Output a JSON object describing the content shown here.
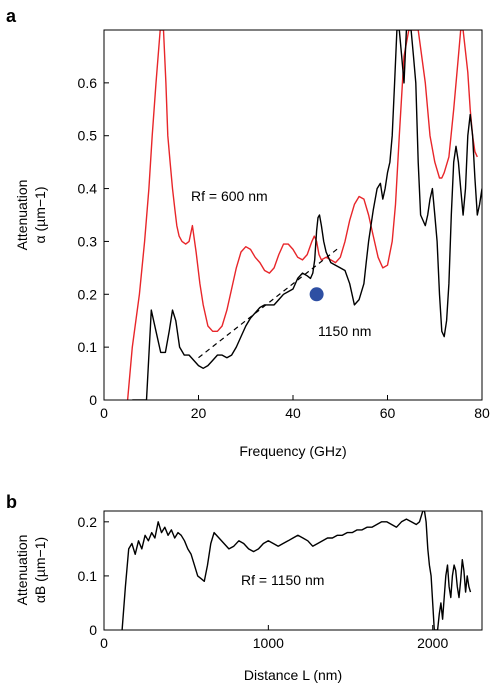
{
  "panels": {
    "a": {
      "letter": "a"
    },
    "b": {
      "letter": "b"
    }
  },
  "chart_data": [
    {
      "panel": "a",
      "type": "line",
      "xlabel": "Frequency (GHz)",
      "ylabel_line1": "Attenuation",
      "ylabel_line2": "α (µm−1)",
      "xlim": [
        0,
        80
      ],
      "ylim": [
        0,
        0.7
      ],
      "xticks": [
        0,
        20,
        40,
        60,
        80
      ],
      "yticks": [
        0,
        0.1,
        0.2,
        0.3,
        0.4,
        0.5,
        0.6
      ],
      "xtick_labels": [
        "0",
        "20",
        "40",
        "60",
        "80"
      ],
      "ytick_labels": [
        "0",
        "0.1",
        "0.2",
        "0.3",
        "0.4",
        "0.5",
        "0.6"
      ],
      "annotations": {
        "red_label": "Rf = 600 nm",
        "black_label": "1150 nm"
      },
      "colors": {
        "red": "#e8262a",
        "black": "#000000",
        "dot": "#2e4fa3"
      },
      "series": [
        {
          "color": "red",
          "x": [
            5.0,
            6.0,
            7.5,
            8.6,
            9.5,
            10.2,
            11.0,
            11.9,
            12.6,
            13.1,
            13.5,
            14.0,
            14.5,
            15.0,
            15.4,
            15.9,
            16.5,
            17.3,
            18.0,
            18.7,
            19.5,
            20.3,
            21.0,
            22.0,
            23.0,
            24.0,
            25.0,
            26.0,
            27.0,
            28.0,
            29.0,
            30.0,
            31.0,
            32.0,
            33.0,
            34.0,
            35.0,
            36.0,
            37.0,
            38.0,
            39.0,
            40.0,
            41.0,
            42.0,
            43.0,
            44.0,
            44.5,
            45.0,
            45.5,
            46.0,
            47.0,
            48.0,
            49.0,
            50.0,
            51.0,
            52.0,
            53.0,
            54.0,
            55.0,
            56.0,
            57.0,
            58.0,
            59.0,
            60.0,
            61.0,
            61.7,
            62.5,
            63.5,
            64.5,
            65.5,
            66.5,
            68.0,
            69.0,
            70.0,
            71.0,
            71.5,
            72.0,
            73.0,
            74.0,
            75.0,
            75.5,
            76.0,
            77.0,
            77.5,
            78.0,
            78.5,
            79.0
          ],
          "y": [
            0.0,
            0.1,
            0.2,
            0.3,
            0.4,
            0.5,
            0.6,
            0.7,
            0.7,
            0.6,
            0.5,
            0.45,
            0.4,
            0.36,
            0.33,
            0.31,
            0.3,
            0.295,
            0.3,
            0.33,
            0.28,
            0.22,
            0.18,
            0.14,
            0.13,
            0.13,
            0.14,
            0.17,
            0.21,
            0.25,
            0.28,
            0.29,
            0.285,
            0.27,
            0.26,
            0.245,
            0.24,
            0.25,
            0.275,
            0.295,
            0.295,
            0.285,
            0.27,
            0.265,
            0.275,
            0.3,
            0.31,
            0.3,
            0.275,
            0.265,
            0.27,
            0.265,
            0.26,
            0.27,
            0.3,
            0.34,
            0.37,
            0.385,
            0.38,
            0.35,
            0.31,
            0.27,
            0.25,
            0.255,
            0.3,
            0.37,
            0.5,
            0.65,
            0.7,
            0.7,
            0.7,
            0.6,
            0.5,
            0.45,
            0.42,
            0.42,
            0.43,
            0.46,
            0.55,
            0.65,
            0.7,
            0.7,
            0.62,
            0.55,
            0.5,
            0.47,
            0.46
          ]
        },
        {
          "color": "black",
          "x": [
            6.0,
            7.0,
            8.0,
            9.0,
            10.0,
            11.0,
            12.0,
            13.0,
            13.8,
            14.5,
            15.2,
            16.0,
            17.0,
            18.0,
            19.0,
            20.0,
            21.0,
            22.0,
            23.0,
            24.0,
            25.0,
            26.0,
            27.0,
            28.0,
            29.0,
            30.0,
            31.0,
            32.0,
            33.0,
            34.0,
            35.0,
            36.0,
            37.0,
            38.0,
            39.0,
            40.0,
            41.0,
            42.0,
            43.0,
            43.7,
            44.2,
            44.6,
            45.0,
            45.3,
            45.6,
            46.0,
            46.5,
            47.0,
            48.0,
            49.0,
            50.0,
            51.0,
            52.0,
            53.0,
            54.0,
            55.0,
            55.5,
            56.0,
            57.0,
            57.8,
            58.5,
            59.0,
            59.5,
            60.0,
            60.5,
            61.0,
            61.5,
            62.0,
            62.5,
            63.0,
            63.5,
            64.0,
            64.5,
            65.0,
            65.5,
            66.0,
            66.5,
            67.0,
            68.0,
            68.5,
            69.0,
            69.5,
            70.0,
            70.5,
            71.0,
            71.5,
            72.0,
            72.5,
            73.0,
            73.5,
            74.0,
            74.5,
            75.0,
            75.5,
            76.0,
            76.5,
            77.0,
            77.5,
            78.0,
            78.5,
            79.0,
            79.5,
            80.0
          ],
          "y": [
            0.0,
            0.0,
            0.0,
            0.0,
            0.17,
            0.13,
            0.09,
            0.09,
            0.13,
            0.17,
            0.15,
            0.1,
            0.085,
            0.085,
            0.075,
            0.065,
            0.06,
            0.065,
            0.075,
            0.085,
            0.085,
            0.08,
            0.085,
            0.1,
            0.12,
            0.14,
            0.155,
            0.165,
            0.175,
            0.18,
            0.18,
            0.18,
            0.19,
            0.2,
            0.205,
            0.21,
            0.23,
            0.24,
            0.235,
            0.23,
            0.24,
            0.265,
            0.32,
            0.345,
            0.35,
            0.33,
            0.3,
            0.28,
            0.26,
            0.255,
            0.25,
            0.245,
            0.22,
            0.18,
            0.19,
            0.22,
            0.26,
            0.3,
            0.36,
            0.4,
            0.41,
            0.38,
            0.4,
            0.43,
            0.45,
            0.5,
            0.6,
            0.7,
            0.7,
            0.65,
            0.6,
            0.7,
            0.7,
            0.7,
            0.65,
            0.6,
            0.45,
            0.35,
            0.33,
            0.35,
            0.38,
            0.4,
            0.35,
            0.3,
            0.2,
            0.13,
            0.12,
            0.15,
            0.22,
            0.35,
            0.45,
            0.48,
            0.45,
            0.4,
            0.35,
            0.4,
            0.5,
            0.54,
            0.5,
            0.42,
            0.35,
            0.37,
            0.4
          ]
        }
      ],
      "fit_line": {
        "x": [
          20,
          50
        ],
        "y": [
          0.08,
          0.29
        ]
      },
      "marker": {
        "x": 45,
        "y": 0.2
      }
    },
    {
      "panel": "b",
      "type": "line",
      "xlabel": "Distance L (nm)",
      "ylabel_line1": "Attenuation",
      "ylabel_line2": "αB (µm−1)",
      "xlim": [
        0,
        2300
      ],
      "ylim": [
        0,
        0.22
      ],
      "xticks": [
        0,
        1000,
        2000
      ],
      "yticks": [
        0,
        0.1,
        0.2
      ],
      "xtick_labels": [
        "0",
        "1000",
        "2000"
      ],
      "ytick_labels": [
        "0",
        "0.1",
        "0.2"
      ],
      "annotations": {
        "label": "Rf = 1150 nm"
      },
      "series": [
        {
          "color": "black",
          "x": [
            110,
            130,
            150,
            170,
            190,
            210,
            230,
            250,
            270,
            290,
            310,
            330,
            350,
            370,
            390,
            410,
            430,
            450,
            470,
            490,
            510,
            530,
            550,
            570,
            590,
            610,
            630,
            650,
            670,
            700,
            730,
            760,
            790,
            820,
            850,
            880,
            910,
            940,
            970,
            1000,
            1030,
            1060,
            1090,
            1120,
            1150,
            1180,
            1210,
            1240,
            1270,
            1300,
            1330,
            1360,
            1390,
            1420,
            1450,
            1480,
            1510,
            1540,
            1570,
            1600,
            1630,
            1660,
            1690,
            1720,
            1750,
            1780,
            1810,
            1840,
            1870,
            1900,
            1920,
            1940,
            1950,
            1960,
            1970,
            1980,
            1990,
            2000,
            2010,
            2020,
            2030,
            2040,
            2050,
            2060,
            2070,
            2080,
            2090,
            2100,
            2110,
            2120,
            2130,
            2140,
            2150,
            2160,
            2170,
            2180,
            2190,
            2200,
            2210,
            2220,
            2230
          ],
          "y": [
            0.0,
            0.08,
            0.15,
            0.16,
            0.14,
            0.165,
            0.15,
            0.175,
            0.165,
            0.18,
            0.17,
            0.2,
            0.18,
            0.19,
            0.175,
            0.185,
            0.17,
            0.18,
            0.175,
            0.165,
            0.15,
            0.14,
            0.12,
            0.1,
            0.095,
            0.09,
            0.12,
            0.16,
            0.18,
            0.17,
            0.16,
            0.15,
            0.155,
            0.165,
            0.16,
            0.15,
            0.145,
            0.15,
            0.16,
            0.165,
            0.16,
            0.155,
            0.16,
            0.165,
            0.17,
            0.175,
            0.17,
            0.165,
            0.155,
            0.16,
            0.165,
            0.17,
            0.17,
            0.175,
            0.175,
            0.18,
            0.18,
            0.185,
            0.185,
            0.19,
            0.19,
            0.195,
            0.2,
            0.2,
            0.195,
            0.19,
            0.2,
            0.205,
            0.2,
            0.195,
            0.2,
            0.22,
            0.22,
            0.2,
            0.15,
            0.12,
            0.1,
            0.05,
            0.0,
            0.0,
            0.0,
            0.03,
            0.05,
            0.02,
            0.06,
            0.1,
            0.12,
            0.08,
            0.06,
            0.1,
            0.12,
            0.11,
            0.08,
            0.06,
            0.09,
            0.13,
            0.11,
            0.07,
            0.1,
            0.08,
            0.07
          ]
        }
      ]
    }
  ]
}
